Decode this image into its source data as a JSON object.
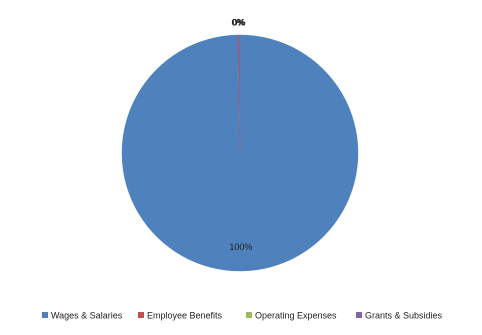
{
  "chart_data": {
    "type": "pie",
    "categories": [
      "Wages & Salaries",
      "Employee Benefits",
      "Operating Expenses",
      "Grants & Subsidies"
    ],
    "values": [
      99.7,
      0.1,
      0.0,
      0.2
    ],
    "value_labels": [
      "100%",
      "0%",
      "0%",
      "0%"
    ],
    "colors": [
      "#4f81bd",
      "#c0504d",
      "#9bbb59",
      "#8064a2"
    ],
    "legend": "bottom"
  }
}
